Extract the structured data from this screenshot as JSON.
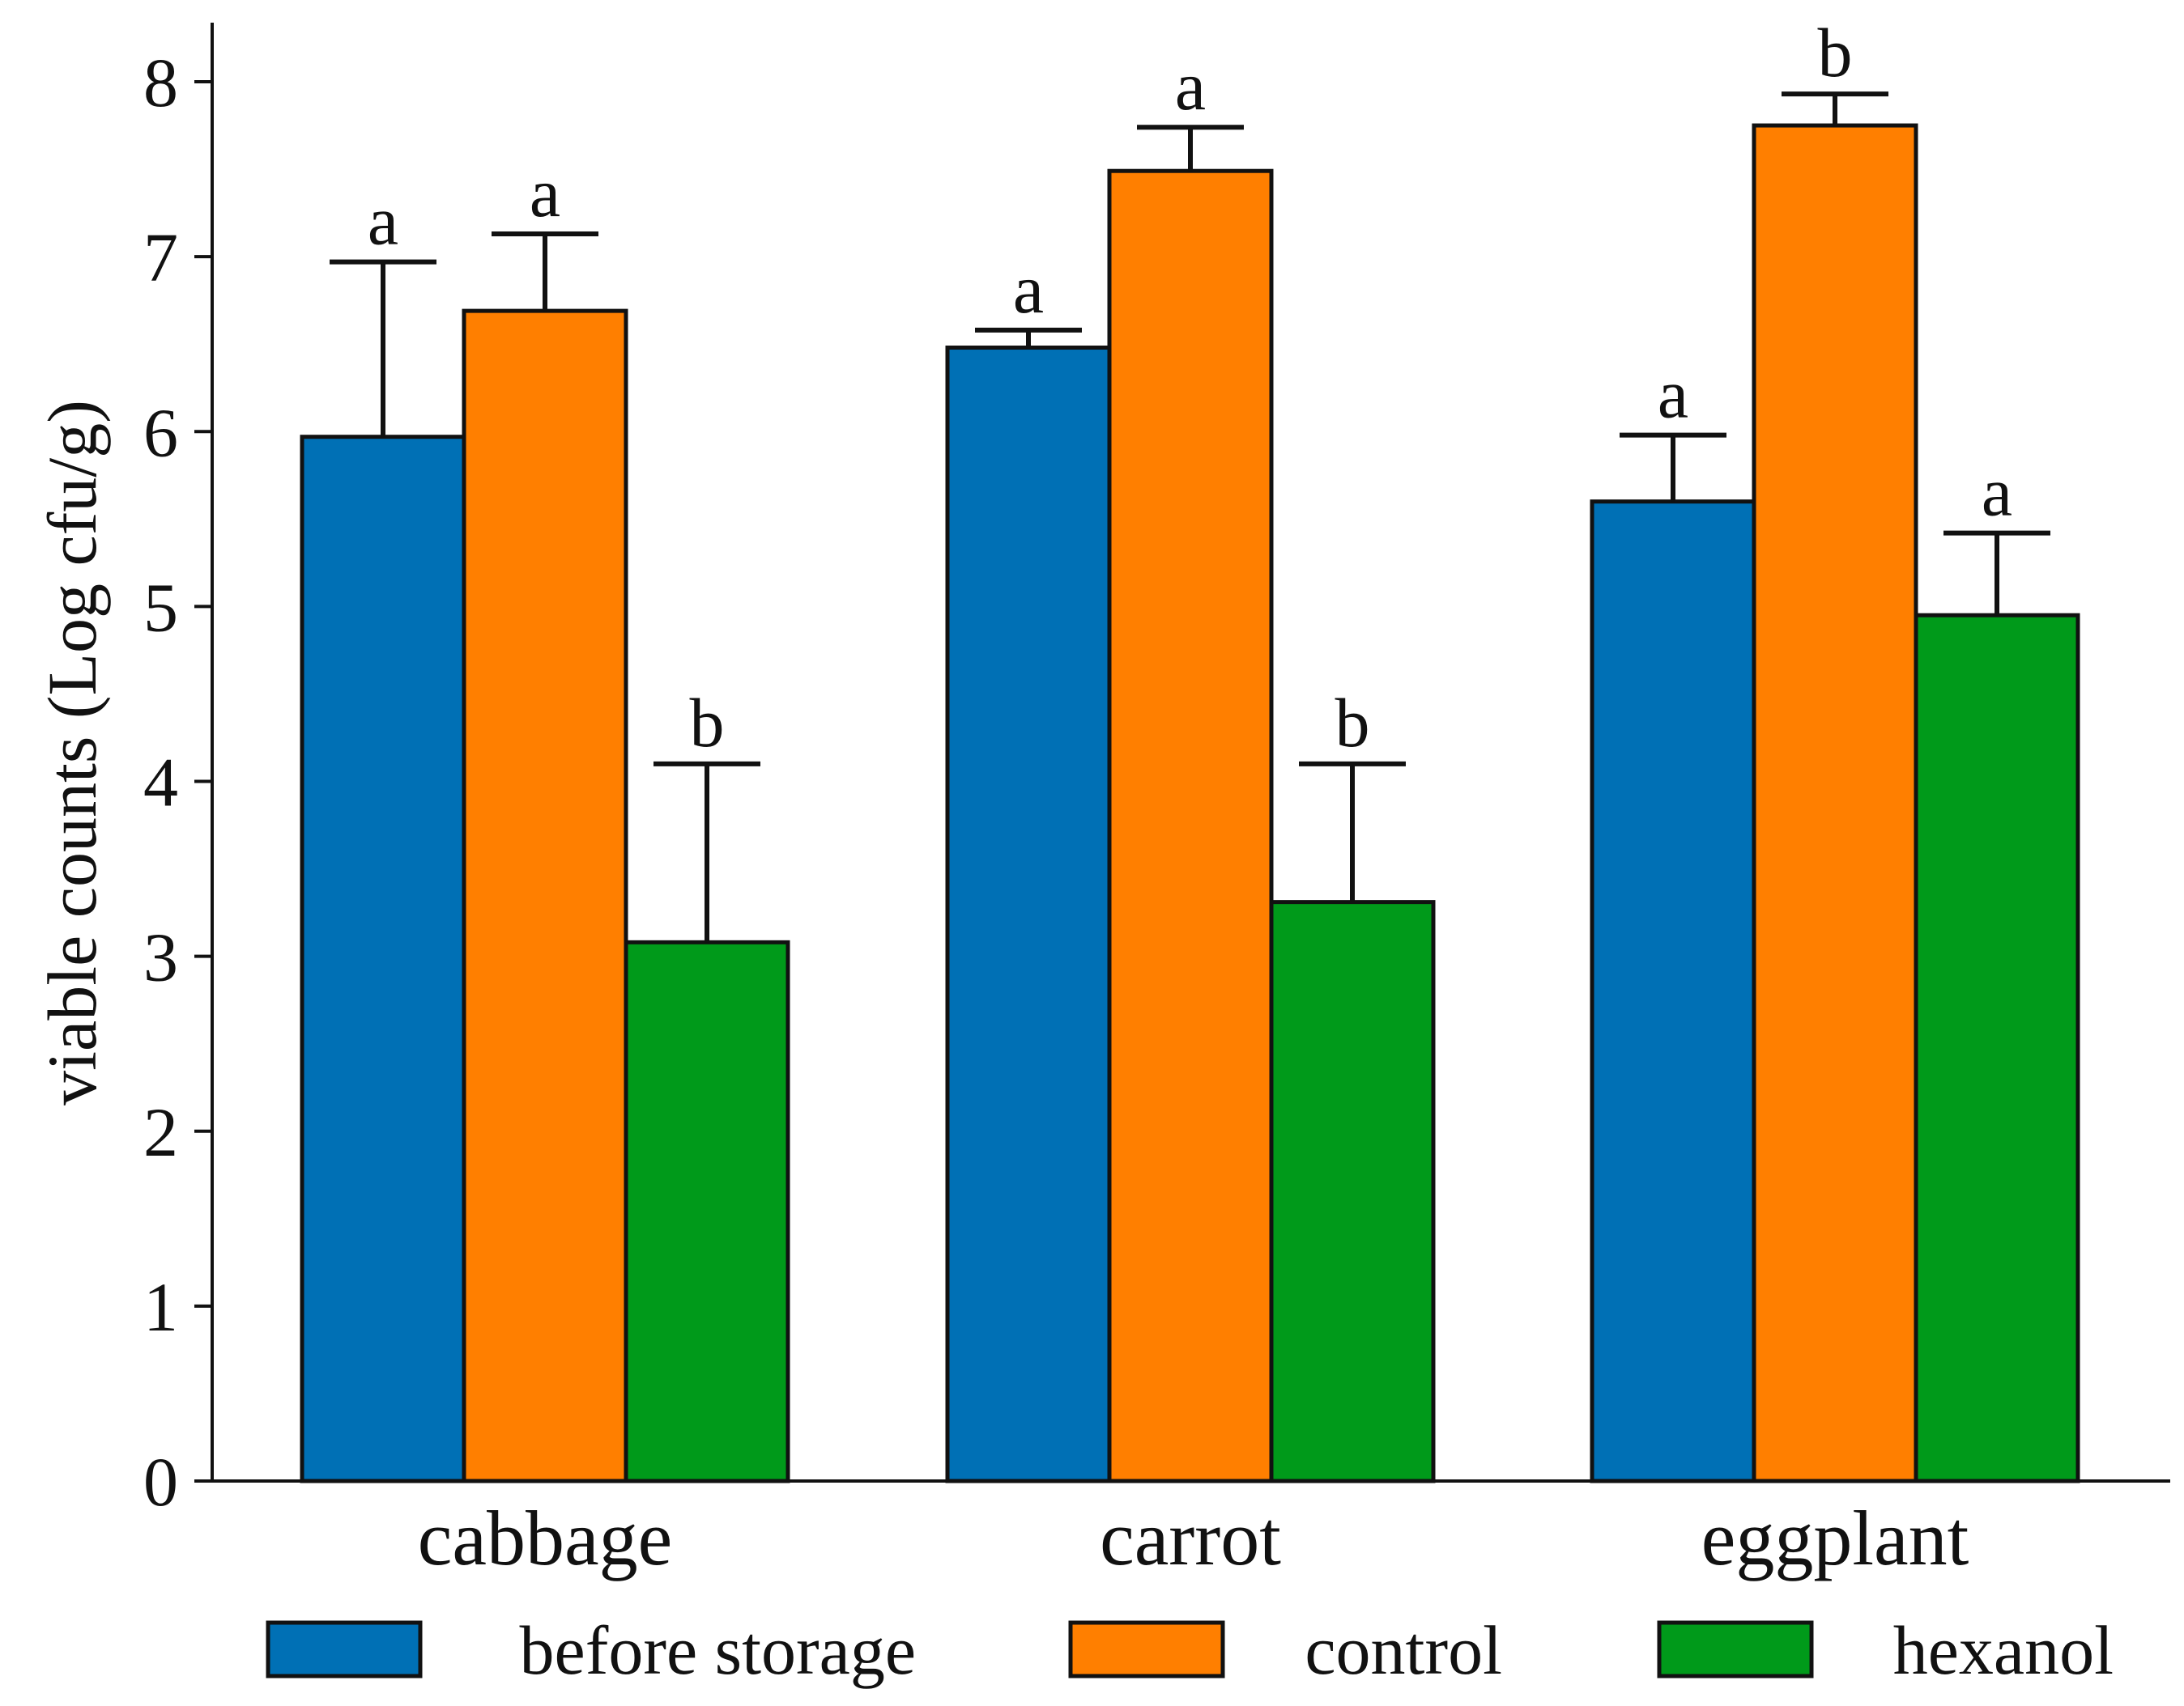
{
  "chart_data": {
    "type": "bar",
    "title": "",
    "xlabel": "",
    "ylabel": "viable counts (Log cfu/g)",
    "ylim": [
      0,
      8
    ],
    "yticks": [
      "0",
      "1",
      "2",
      "3",
      "4",
      "5",
      "6",
      "7",
      "8"
    ],
    "categories": [
      "cabbage",
      "carrot",
      "eggplant"
    ],
    "series": [
      {
        "name": "before storage",
        "color": "#0070B5",
        "values": [
          5.97,
          6.48,
          5.6
        ],
        "errors": [
          1.0,
          0.1,
          0.38
        ],
        "significance": [
          "a",
          "a",
          "a"
        ]
      },
      {
        "name": "control",
        "color": "#FF7F00",
        "values": [
          6.69,
          7.49,
          7.75
        ],
        "errors": [
          0.44,
          0.25,
          0.18
        ],
        "significance": [
          "a",
          "a",
          "b"
        ]
      },
      {
        "name": "hexanol",
        "color": "#009A1A",
        "values": [
          3.08,
          3.31,
          4.95
        ],
        "errors": [
          1.02,
          0.79,
          0.47
        ],
        "significance": [
          "b",
          "b",
          "a"
        ]
      }
    ],
    "legend_position": "bottom"
  }
}
